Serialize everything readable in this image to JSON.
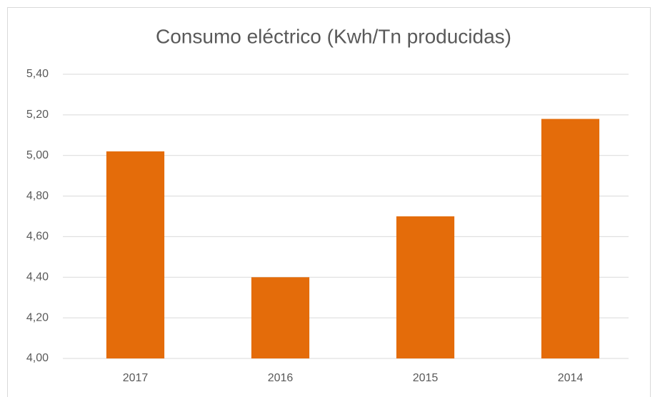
{
  "chart_data": {
    "type": "bar",
    "title": "Consumo eléctrico (Kwh/Tn producidas)",
    "categories": [
      "2017",
      "2016",
      "2015",
      "2014"
    ],
    "values": [
      5.02,
      4.4,
      4.7,
      5.18
    ],
    "color": "#e46c0a",
    "ylim": [
      4.0,
      5.4
    ],
    "yticks": [
      {
        "value": 4.0,
        "label": "4,00"
      },
      {
        "value": 4.2,
        "label": "4,20"
      },
      {
        "value": 4.4,
        "label": "4,40"
      },
      {
        "value": 4.6,
        "label": "4,60"
      },
      {
        "value": 4.8,
        "label": "4,80"
      },
      {
        "value": 5.0,
        "label": "5,00"
      },
      {
        "value": 5.2,
        "label": "5,20"
      },
      {
        "value": 5.4,
        "label": "5,40"
      }
    ],
    "grid": true
  }
}
